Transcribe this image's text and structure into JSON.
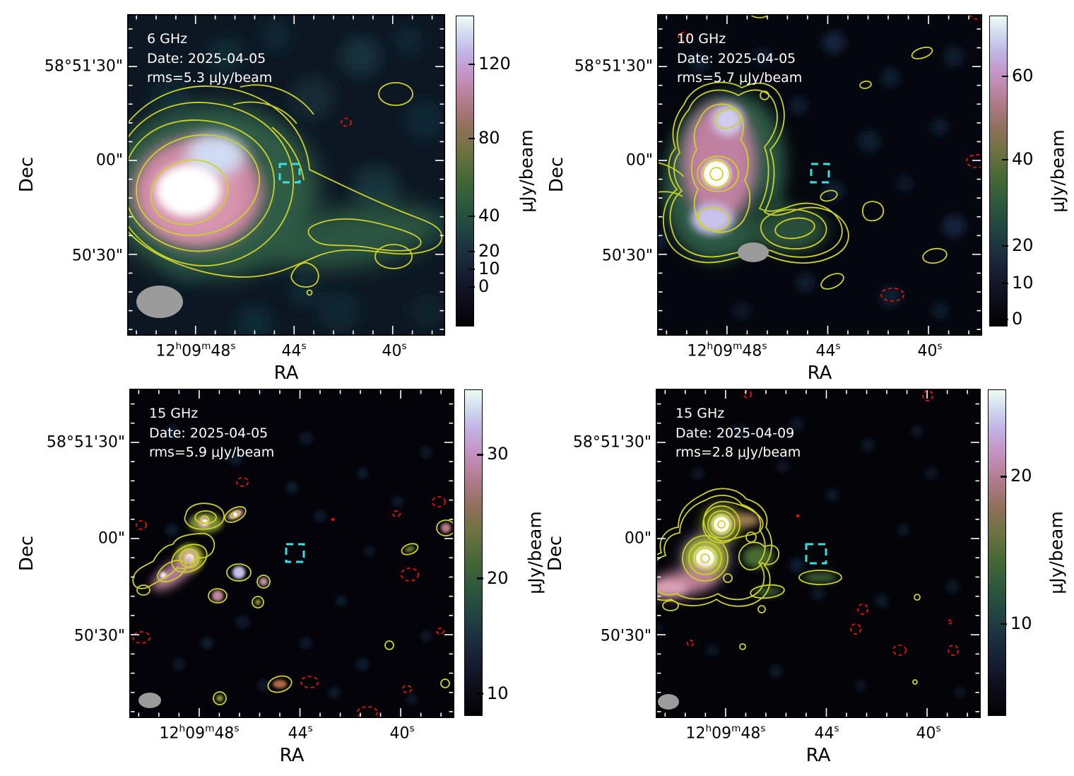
{
  "figure": {
    "xlabel": "RA",
    "ylabel": "Dec",
    "colorbar_label": "μJy/beam",
    "dec_ticks": [
      "58°51'30\"",
      "00\"",
      "50'30\""
    ],
    "ra_ticks": [
      {
        "p1": "12",
        "s1": "h",
        "p2": "09",
        "s2": "m",
        "p3": "48",
        "s3": "s"
      },
      {
        "p1": "44",
        "s1": "s"
      },
      {
        "p1": "40",
        "s1": "s"
      }
    ]
  },
  "panels": [
    {
      "freq": "6 GHz",
      "date": "Date: 2025-04-05",
      "rms": "rms=5.3 μJy/beam",
      "cticks": [
        "120",
        "80",
        "40",
        "20",
        "10",
        "0"
      ]
    },
    {
      "freq": "10 GHz",
      "date": "Date: 2025-04-05",
      "rms": "rms=5.7 μJy/beam",
      "cticks": [
        "60",
        "40",
        "20",
        "10",
        "0"
      ]
    },
    {
      "freq": "15 GHz",
      "date": "Date: 2025-04-05",
      "rms": "rms=5.9 μJy/beam",
      "cticks": [
        "30",
        "20",
        "10"
      ]
    },
    {
      "freq": "15 GHz",
      "date": "Date: 2025-04-09",
      "rms": "rms=2.8 μJy/beam",
      "cticks": [
        "20",
        "10"
      ]
    }
  ],
  "chart_data": [
    {
      "type": "heatmap",
      "panel": "top-left",
      "frequency": "6 GHz",
      "date": "2025-04-05",
      "rms_uJy_per_beam": 5.3,
      "xlabel": "RA",
      "ylabel": "Dec",
      "x_ticks": [
        "12h09m48s",
        "44s",
        "40s"
      ],
      "y_ticks": [
        "58°51'30\"",
        "00\"",
        "50'30\""
      ],
      "colorbar": {
        "label": "μJy/beam",
        "ticks": [
          0,
          10,
          20,
          40,
          80,
          120
        ]
      },
      "overlays": {
        "positive_contours": "yellow solid",
        "negative_contours": "red dashed",
        "aperture_box": "cyan dashed square",
        "beam": "grey filled ellipse, lower left"
      },
      "description": "Bright extended source east of field with white/pink core and green tail extending west"
    },
    {
      "type": "heatmap",
      "panel": "top-right",
      "frequency": "10 GHz",
      "date": "2025-04-05",
      "rms_uJy_per_beam": 5.7,
      "xlabel": "RA",
      "ylabel": "Dec",
      "x_ticks": [
        "12h09m48s",
        "44s",
        "40s"
      ],
      "y_ticks": [
        "58°51'30\"",
        "00\"",
        "50'30\""
      ],
      "colorbar": {
        "label": "μJy/beam",
        "ticks": [
          0,
          10,
          20,
          40,
          60
        ]
      },
      "overlays": {
        "positive_contours": "yellow solid",
        "negative_contours": "red dashed",
        "aperture_box": "cyan dashed square",
        "beam": "grey filled ellipse"
      },
      "description": "Compact bright source with white core at east, short green extension; mostly dark field"
    },
    {
      "type": "heatmap",
      "panel": "bottom-left",
      "frequency": "15 GHz",
      "date": "2025-04-05",
      "rms_uJy_per_beam": 5.9,
      "xlabel": "RA",
      "ylabel": "Dec",
      "x_ticks": [
        "12h09m48s",
        "44s",
        "40s"
      ],
      "y_ticks": [
        "58°51'30\"",
        "00\"",
        "50'30\""
      ],
      "colorbar": {
        "label": "μJy/beam",
        "ticks": [
          10,
          20,
          30
        ]
      },
      "overlays": {
        "positive_contours": "yellow solid",
        "negative_contours": "red dashed",
        "aperture_box": "cyan dashed square",
        "beam": "grey filled ellipse, lower left"
      },
      "description": "Source broken into several compact knots at east; many faint noise blobs"
    },
    {
      "type": "heatmap",
      "panel": "bottom-right",
      "frequency": "15 GHz",
      "date": "2025-04-09",
      "rms_uJy_per_beam": 2.8,
      "xlabel": "RA",
      "ylabel": "Dec",
      "x_ticks": [
        "12h09m48s",
        "44s",
        "40s"
      ],
      "y_ticks": [
        "58°51'30\"",
        "00\"",
        "50'30\""
      ],
      "colorbar": {
        "label": "μJy/beam",
        "ticks": [
          10,
          20
        ]
      },
      "overlays": {
        "positive_contours": "yellow solid",
        "negative_contours": "red dashed",
        "aperture_box": "cyan dashed square",
        "beam": "grey filled ellipse, lower left"
      },
      "description": "Two strong compact knots with concentric contours at east plus pink wing extending to edge"
    }
  ]
}
